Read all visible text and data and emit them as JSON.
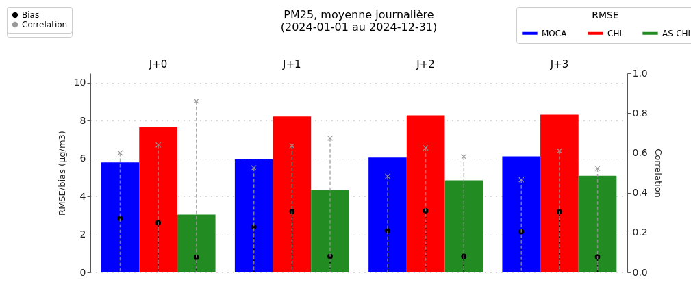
{
  "chart_data": {
    "type": "bar",
    "title": "PM25, moyenne journalière",
    "subtitle": "(2024-01-01 au 2024-12-31)",
    "ylabel": "RMSE/bias (μg/m3)",
    "y2label": "Correlation",
    "legend_title": "RMSE",
    "categories": [
      "J+0",
      "J+1",
      "J+2",
      "J+3"
    ],
    "series": [
      {
        "name": "MOCA",
        "color": "#0000ff",
        "values": [
          5.8,
          5.95,
          6.05,
          6.12
        ]
      },
      {
        "name": "CHI",
        "color": "#ff0000",
        "values": [
          7.65,
          8.22,
          8.28,
          8.32
        ]
      },
      {
        "name": "AS-CHI",
        "color": "#228b22",
        "values": [
          3.05,
          4.37,
          4.85,
          5.1
        ]
      },
      {
        "name": "Bias",
        "type": "lollipop",
        "color": "#000000",
        "marker": "circle",
        "line_style": "dotted",
        "x": [
          "J+0",
          "J+0",
          "J+0",
          "J+1",
          "J+1",
          "J+1",
          "J+2",
          "J+2",
          "J+2",
          "J+3",
          "J+3",
          "J+3"
        ],
        "values": [
          2.85,
          2.62,
          0.8,
          2.4,
          3.22,
          0.85,
          2.2,
          3.25,
          0.85,
          2.15,
          3.2,
          0.82
        ]
      },
      {
        "name": "Correlation",
        "type": "lollipop",
        "axis": "y2",
        "color": "#999999",
        "marker": "cross",
        "line_style": "dashed",
        "x": [
          "J+0",
          "J+0",
          "J+0",
          "J+1",
          "J+1",
          "J+1",
          "J+2",
          "J+2",
          "J+2",
          "J+3",
          "J+3",
          "J+3"
        ],
        "values": [
          0.6,
          0.64,
          0.86,
          0.525,
          0.636,
          0.674,
          0.483,
          0.625,
          0.581,
          0.465,
          0.61,
          0.522
        ]
      }
    ],
    "ylim": [
      0,
      10.5
    ],
    "yticks": [
      0,
      2,
      4,
      6,
      8,
      10
    ],
    "y2lim": [
      0,
      1
    ],
    "y2ticks": [
      {
        "value": 0,
        "label": "0.0"
      },
      {
        "value": 0.2,
        "label": "0.2"
      },
      {
        "value": 0.4,
        "label": "0.4"
      },
      {
        "value": 0.6,
        "label": "0.6"
      },
      {
        "value": 0.8,
        "label": "0.8"
      },
      {
        "value": 1,
        "label": "1.0"
      }
    ],
    "grid": "y",
    "legend": "top right"
  }
}
